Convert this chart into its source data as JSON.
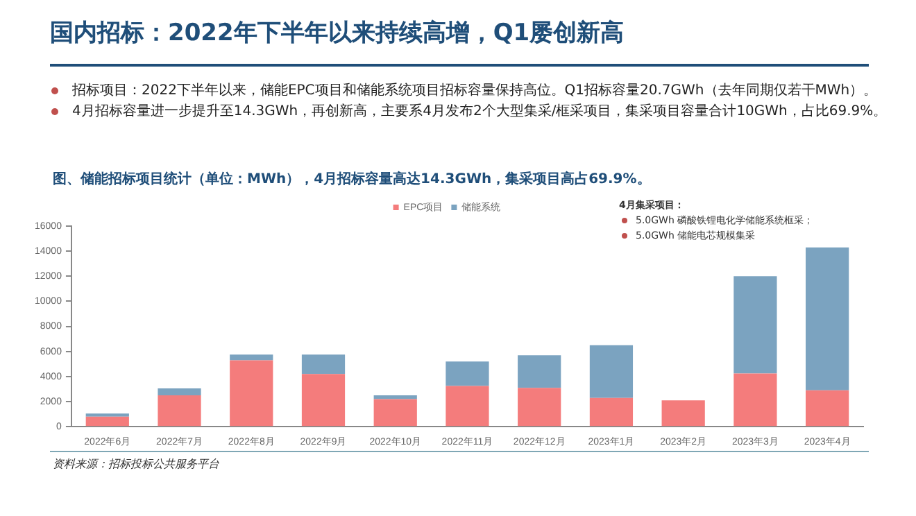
{
  "chart_data": {
    "type": "bar",
    "title": "国内招标：2022年下半年以来持续高增，Q1屡创新高",
    "subtitle": "图、储能招标项目统计（单位：MWh），4月招标容量高达14.3GWh，集采项目高占69.9%。",
    "annotations": [
      "招标项目：2022下半年以来，储能EPC项目和储能系统项目招标容量保持高位。Q1招标容量20.7GWh（去年同期仅若干MWh）。",
      "4月招标容量进一步提升至14.3GWh，再创新高，主要系4月发布2个大型集采/框采项目，集采项目容量合计10GWh，占比69.9%。",
      "4月集采项目：",
      "5.0GWh 磷酸铁锂电化学储能系统框采；",
      "5.0GWh 储能电芯规模集采",
      "资料来源：招标投标公共服务平台"
    ],
    "categories": [
      "2022年6月",
      "2022年7月",
      "2022年8月",
      "2022年9月",
      "2022年10月",
      "2022年11月",
      "2022年12月",
      "2023年1月",
      "2023年2月",
      "2023年3月",
      "2023年4月"
    ],
    "series": [
      {
        "name": "EPC项目",
        "color": "#f47c7c",
        "values": [
          800,
          2500,
          5300,
          4200,
          2200,
          3250,
          3100,
          2300,
          2100,
          4250,
          2900
        ]
      },
      {
        "name": "储能系统",
        "color": "#7ba3c0",
        "values": [
          250,
          550,
          450,
          1550,
          300,
          1950,
          2600,
          4200,
          0,
          7750,
          11400
        ]
      }
    ],
    "stacked": true,
    "ylim": [
      0,
      16000
    ],
    "yticks": [
      0,
      2000,
      4000,
      6000,
      8000,
      10000,
      12000,
      14000,
      16000
    ],
    "grid": false,
    "legend": "top"
  }
}
